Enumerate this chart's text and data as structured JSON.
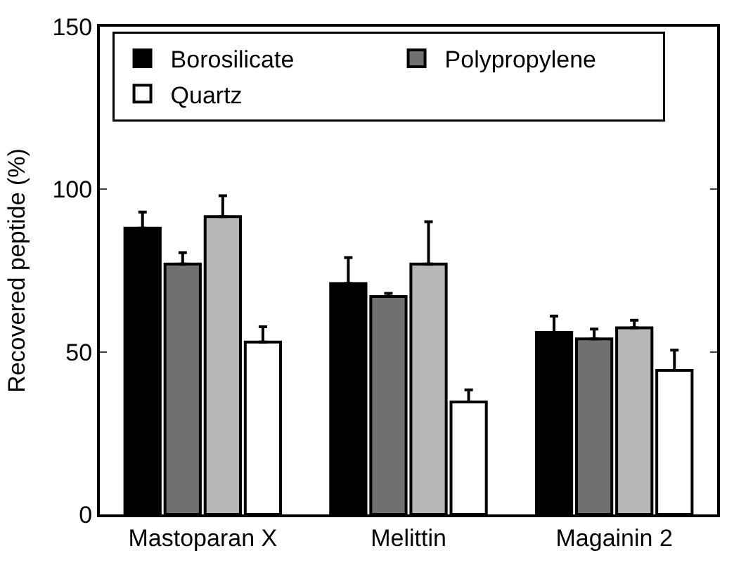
{
  "chart_data": {
    "type": "bar",
    "ylabel": "Recovered peptide (%)",
    "categories": [
      "Mastoparan X",
      "Melittin",
      "Magainin 2"
    ],
    "ylim": [
      0,
      150
    ],
    "yticks": [
      0,
      50,
      100,
      150
    ],
    "legend": "top",
    "series": [
      {
        "name": "Borosilicate",
        "color": "#000000",
        "values": [
          88,
          71,
          56
        ],
        "errors": [
          5,
          8,
          5
        ]
      },
      {
        "name": "Polypropylene",
        "color": "#707070",
        "values": [
          77,
          67,
          54
        ],
        "errors": [
          3.5,
          1,
          3
        ]
      },
      {
        "color": "#b8b8b8",
        "values": [
          91.6,
          77,
          57.4
        ],
        "errors": [
          6.4,
          13,
          2.3
        ]
      },
      {
        "name": "Quartz",
        "color": "#ffffff",
        "values": [
          53,
          34.6,
          44.3
        ],
        "errors": [
          4.7,
          3.7,
          6.2
        ]
      }
    ]
  }
}
